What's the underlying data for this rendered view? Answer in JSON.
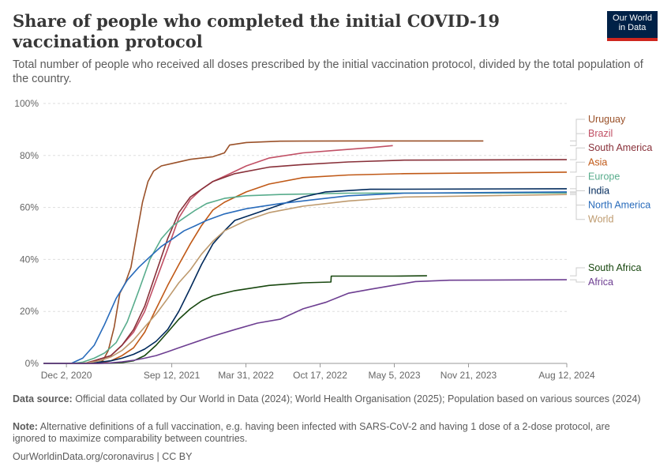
{
  "header": {
    "title": "Share of people who completed the initial COVID-19 vaccination protocol",
    "subtitle": "Total number of people who received all doses prescribed by the initial vaccination protocol, divided by the total population of the country.",
    "logo_line1": "Our World",
    "logo_line2": "in Data"
  },
  "footer": {
    "source_label": "Data source:",
    "source_text": "Official data collated by Our World in Data (2024); World Health Organisation (2025); Population based on various sources (2024)",
    "note_label": "Note:",
    "note_text": "Alternative definitions of a full vaccination, e.g. having been infected with SARS-CoV-2 and having 1 dose of a 2-dose protocol, are ignored to maximize comparability between countries.",
    "url": "OurWorldinData.org/coronavirus | CC BY"
  },
  "colors": {
    "Uruguay": "#9a5129",
    "Brazil": "#c15065",
    "South America": "#883039",
    "Asia": "#c05917",
    "Europe": "#58ac8c",
    "India": "#00295b",
    "North America": "#286bbb",
    "World": "#be9a6e",
    "South Africa": "#18470f",
    "Africa": "#6d3e91"
  },
  "chart_data": {
    "type": "line",
    "title": "Share of people who completed the initial COVID-19 vaccination protocol",
    "xlabel": "",
    "ylabel": "",
    "x_ticks": [
      "Dec 2, 2020",
      "Sep 12, 2021",
      "Mar 31, 2022",
      "Oct 17, 2022",
      "May 5, 2023",
      "Nov 21, 2023",
      "Aug 12, 2024"
    ],
    "y_ticks": [
      "0%",
      "20%",
      "40%",
      "60%",
      "80%",
      "100%"
    ],
    "ylim": [
      0,
      100
    ],
    "xlim": [
      "2020-10-01",
      "2024-08-12"
    ],
    "grid": "horizontal dashed",
    "legend": "right, end-of-line labels",
    "series": [
      {
        "name": "Uruguay",
        "points": [
          [
            "2020-10-01",
            0
          ],
          [
            "2021-02-25",
            0
          ],
          [
            "2021-03-10",
            1
          ],
          [
            "2021-03-25",
            5
          ],
          [
            "2021-04-10",
            14
          ],
          [
            "2021-04-25",
            27
          ],
          [
            "2021-05-10",
            31
          ],
          [
            "2021-05-25",
            37
          ],
          [
            "2021-06-10",
            50
          ],
          [
            "2021-06-25",
            62
          ],
          [
            "2021-07-10",
            70
          ],
          [
            "2021-07-25",
            74
          ],
          [
            "2021-08-15",
            76
          ],
          [
            "2021-09-15",
            77
          ],
          [
            "2021-11-01",
            78.5
          ],
          [
            "2022-01-01",
            79.5
          ],
          [
            "2022-02-01",
            81
          ],
          [
            "2022-02-15",
            84
          ],
          [
            "2022-04-01",
            85
          ],
          [
            "2022-07-01",
            85.5
          ],
          [
            "2023-01-01",
            85.6
          ],
          [
            "2023-12-31",
            85.6
          ]
        ]
      },
      {
        "name": "Brazil",
        "points": [
          [
            "2020-10-01",
            0
          ],
          [
            "2021-01-20",
            0
          ],
          [
            "2021-02-15",
            1
          ],
          [
            "2021-04-01",
            3
          ],
          [
            "2021-05-01",
            7
          ],
          [
            "2021-06-01",
            12
          ],
          [
            "2021-07-01",
            20
          ],
          [
            "2021-08-01",
            32
          ],
          [
            "2021-09-01",
            44
          ],
          [
            "2021-10-01",
            56
          ],
          [
            "2021-11-01",
            63
          ],
          [
            "2021-12-01",
            67
          ],
          [
            "2022-01-01",
            70
          ],
          [
            "2022-02-01",
            72
          ],
          [
            "2022-04-01",
            76
          ],
          [
            "2022-06-01",
            79
          ],
          [
            "2022-09-01",
            81
          ],
          [
            "2022-12-01",
            82
          ],
          [
            "2023-03-01",
            83
          ],
          [
            "2023-05-01",
            83.8
          ]
        ]
      },
      {
        "name": "South America",
        "points": [
          [
            "2020-10-01",
            0
          ],
          [
            "2021-01-20",
            0
          ],
          [
            "2021-02-15",
            1
          ],
          [
            "2021-04-01",
            3
          ],
          [
            "2021-05-01",
            7
          ],
          [
            "2021-06-01",
            13
          ],
          [
            "2021-07-01",
            22
          ],
          [
            "2021-08-01",
            35
          ],
          [
            "2021-09-01",
            48
          ],
          [
            "2021-10-01",
            58
          ],
          [
            "2021-11-01",
            64
          ],
          [
            "2021-12-01",
            67
          ],
          [
            "2022-01-01",
            70
          ],
          [
            "2022-03-01",
            73
          ],
          [
            "2022-06-01",
            75.5
          ],
          [
            "2022-09-01",
            76.5
          ],
          [
            "2023-01-01",
            77.5
          ],
          [
            "2023-06-01",
            78.2
          ],
          [
            "2024-08-12",
            78.4
          ]
        ]
      },
      {
        "name": "Asia",
        "points": [
          [
            "2020-10-01",
            0
          ],
          [
            "2021-03-01",
            0
          ],
          [
            "2021-04-01",
            1
          ],
          [
            "2021-05-01",
            3
          ],
          [
            "2021-06-01",
            6
          ],
          [
            "2021-07-01",
            12
          ],
          [
            "2021-08-01",
            21
          ],
          [
            "2021-09-01",
            30
          ],
          [
            "2021-10-01",
            38
          ],
          [
            "2021-11-01",
            46
          ],
          [
            "2021-12-01",
            53
          ],
          [
            "2022-01-01",
            59
          ],
          [
            "2022-02-01",
            62
          ],
          [
            "2022-04-01",
            66
          ],
          [
            "2022-06-01",
            69
          ],
          [
            "2022-09-01",
            71.5
          ],
          [
            "2023-01-01",
            72.5
          ],
          [
            "2023-06-01",
            73
          ],
          [
            "2024-08-12",
            73.6
          ]
        ]
      },
      {
        "name": "Europe",
        "points": [
          [
            "2020-10-01",
            0
          ],
          [
            "2020-12-20",
            0
          ],
          [
            "2021-01-15",
            0.5
          ],
          [
            "2021-02-15",
            2
          ],
          [
            "2021-03-15",
            4
          ],
          [
            "2021-04-15",
            8
          ],
          [
            "2021-05-15",
            16
          ],
          [
            "2021-06-15",
            28
          ],
          [
            "2021-07-15",
            40
          ],
          [
            "2021-08-15",
            48
          ],
          [
            "2021-09-15",
            53
          ],
          [
            "2021-10-15",
            56
          ],
          [
            "2021-11-15",
            59
          ],
          [
            "2021-12-15",
            61.5
          ],
          [
            "2022-02-01",
            63.5
          ],
          [
            "2022-04-01",
            64.5
          ],
          [
            "2022-07-01",
            65
          ],
          [
            "2023-01-01",
            65.5
          ],
          [
            "2024-08-12",
            65.6
          ]
        ]
      },
      {
        "name": "India",
        "points": [
          [
            "2020-10-01",
            0
          ],
          [
            "2021-01-20",
            0
          ],
          [
            "2021-02-15",
            0.2
          ],
          [
            "2021-03-01",
            0.5
          ],
          [
            "2021-04-01",
            1
          ],
          [
            "2021-05-01",
            2
          ],
          [
            "2021-06-01",
            3.5
          ],
          [
            "2021-07-01",
            5.5
          ],
          [
            "2021-08-01",
            8.5
          ],
          [
            "2021-09-01",
            13
          ],
          [
            "2021-10-01",
            20
          ],
          [
            "2021-11-01",
            29
          ],
          [
            "2021-12-01",
            38
          ],
          [
            "2022-01-01",
            46
          ],
          [
            "2022-02-01",
            51
          ],
          [
            "2022-03-01",
            55
          ],
          [
            "2022-05-01",
            58
          ],
          [
            "2022-07-01",
            61
          ],
          [
            "2022-09-01",
            64
          ],
          [
            "2022-11-01",
            66
          ],
          [
            "2023-03-01",
            67
          ],
          [
            "2024-08-12",
            67.2
          ]
        ]
      },
      {
        "name": "North America",
        "points": [
          [
            "2020-10-01",
            0
          ],
          [
            "2020-12-15",
            0
          ],
          [
            "2021-01-15",
            2
          ],
          [
            "2021-02-15",
            7
          ],
          [
            "2021-03-15",
            15
          ],
          [
            "2021-04-15",
            25
          ],
          [
            "2021-05-15",
            32
          ],
          [
            "2021-06-15",
            37
          ],
          [
            "2021-07-15",
            41
          ],
          [
            "2021-08-15",
            45
          ],
          [
            "2021-09-15",
            48
          ],
          [
            "2021-10-15",
            51
          ],
          [
            "2021-11-15",
            53
          ],
          [
            "2021-12-15",
            55
          ],
          [
            "2022-02-01",
            57.5
          ],
          [
            "2022-04-01",
            59.5
          ],
          [
            "2022-07-01",
            61.5
          ],
          [
            "2022-10-01",
            63
          ],
          [
            "2023-01-01",
            64.5
          ],
          [
            "2023-06-01",
            65.5
          ],
          [
            "2024-08-12",
            66
          ]
        ]
      },
      {
        "name": "World",
        "points": [
          [
            "2020-10-01",
            0
          ],
          [
            "2021-01-01",
            0
          ],
          [
            "2021-02-01",
            0.3
          ],
          [
            "2021-03-01",
            1
          ],
          [
            "2021-04-01",
            2.5
          ],
          [
            "2021-05-01",
            5
          ],
          [
            "2021-06-01",
            9
          ],
          [
            "2021-07-01",
            14
          ],
          [
            "2021-08-01",
            19
          ],
          [
            "2021-09-01",
            25
          ],
          [
            "2021-10-01",
            31
          ],
          [
            "2021-11-01",
            36
          ],
          [
            "2021-12-01",
            42
          ],
          [
            "2022-01-01",
            47
          ],
          [
            "2022-02-01",
            51
          ],
          [
            "2022-04-01",
            55
          ],
          [
            "2022-06-01",
            58
          ],
          [
            "2022-09-01",
            60.5
          ],
          [
            "2023-01-01",
            62.5
          ],
          [
            "2023-06-01",
            64
          ],
          [
            "2024-08-12",
            65
          ]
        ]
      },
      {
        "name": "South Africa",
        "points": [
          [
            "2020-10-01",
            0
          ],
          [
            "2021-03-01",
            0
          ],
          [
            "2021-04-01",
            0.1
          ],
          [
            "2021-05-01",
            0.3
          ],
          [
            "2021-06-01",
            1
          ],
          [
            "2021-07-01",
            3
          ],
          [
            "2021-08-01",
            7
          ],
          [
            "2021-09-01",
            12
          ],
          [
            "2021-10-01",
            17
          ],
          [
            "2021-11-01",
            21
          ],
          [
            "2021-12-01",
            24
          ],
          [
            "2022-01-01",
            26
          ],
          [
            "2022-03-01",
            28
          ],
          [
            "2022-06-01",
            30
          ],
          [
            "2022-09-01",
            31
          ],
          [
            "2022-11-15",
            31.3
          ],
          [
            "2022-11-16",
            33.6
          ],
          [
            "2023-05-01",
            33.6
          ],
          [
            "2023-08-01",
            33.7
          ]
        ]
      },
      {
        "name": "Africa",
        "points": [
          [
            "2020-10-01",
            0
          ],
          [
            "2021-03-01",
            0
          ],
          [
            "2021-04-01",
            0.2
          ],
          [
            "2021-05-01",
            0.6
          ],
          [
            "2021-06-01",
            1.2
          ],
          [
            "2021-07-01",
            2
          ],
          [
            "2021-08-01",
            3
          ],
          [
            "2021-09-01",
            4.5
          ],
          [
            "2021-10-01",
            6
          ],
          [
            "2021-11-01",
            7.5
          ],
          [
            "2021-12-01",
            9
          ],
          [
            "2022-01-01",
            10.5
          ],
          [
            "2022-03-01",
            13
          ],
          [
            "2022-05-01",
            15.5
          ],
          [
            "2022-07-01",
            17
          ],
          [
            "2022-09-01",
            21
          ],
          [
            "2022-11-01",
            23.5
          ],
          [
            "2023-01-01",
            27
          ],
          [
            "2023-03-01",
            28.5
          ],
          [
            "2023-05-01",
            30
          ],
          [
            "2023-07-01",
            31.5
          ],
          [
            "2023-10-01",
            32
          ],
          [
            "2024-08-12",
            32.2
          ]
        ]
      }
    ]
  }
}
